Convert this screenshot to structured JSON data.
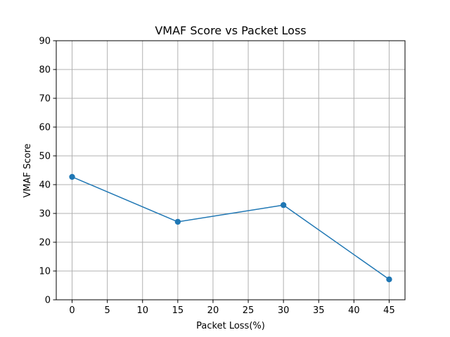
{
  "chart_data": {
    "type": "line",
    "title": "VMAF Score vs Packet Loss",
    "xlabel": "Packet Loss(%)",
    "ylabel": "VMAF Score",
    "xlim": [
      -2.25,
      47.25
    ],
    "ylim": [
      0,
      90
    ],
    "xticks": [
      0,
      5,
      10,
      15,
      20,
      25,
      30,
      35,
      40,
      45
    ],
    "yticks": [
      0,
      10,
      20,
      30,
      40,
      50,
      60,
      70,
      80,
      90
    ],
    "grid": true,
    "series": [
      {
        "x": [
          0,
          15,
          30,
          45
        ],
        "values": [
          42.7,
          27.1,
          32.9,
          7.1
        ],
        "color": "#1f77b4",
        "marker": "circle"
      }
    ]
  }
}
